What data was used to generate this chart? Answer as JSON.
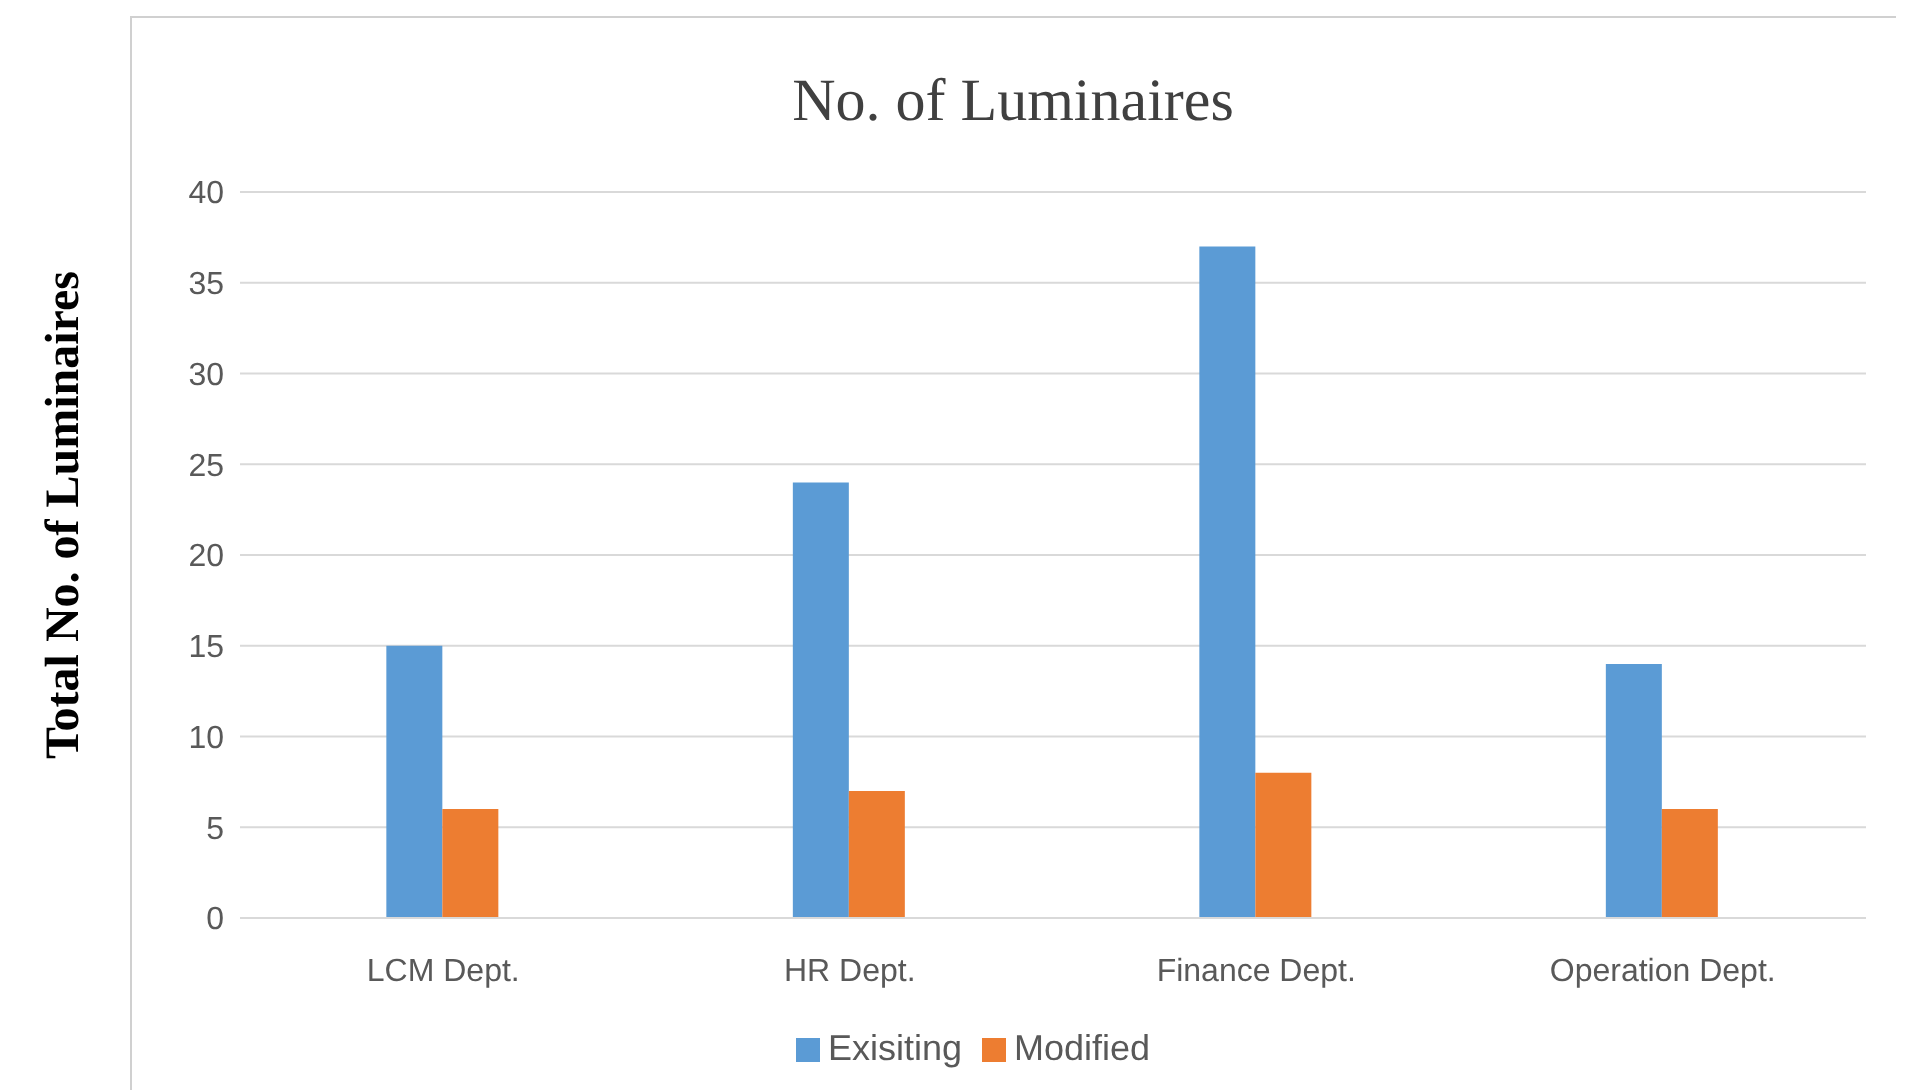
{
  "chart_data": {
    "type": "bar",
    "title": "No. of  Luminaires",
    "ylabel": "Total No. of Luminaires",
    "categories": [
      "LCM Dept.",
      "HR Dept.",
      "Finance Dept.",
      "Operation Dept."
    ],
    "series": [
      {
        "name": "Exisiting",
        "color": "#5b9bd5",
        "values": [
          15,
          24,
          37,
          14
        ]
      },
      {
        "name": "Modified",
        "color": "#ed7d31",
        "values": [
          6,
          7,
          8,
          6
        ]
      }
    ],
    "ylim": [
      0,
      40
    ],
    "yticks": [
      0,
      5,
      10,
      15,
      20,
      25,
      30,
      35,
      40
    ],
    "grid": "y",
    "legend": "bottom"
  }
}
